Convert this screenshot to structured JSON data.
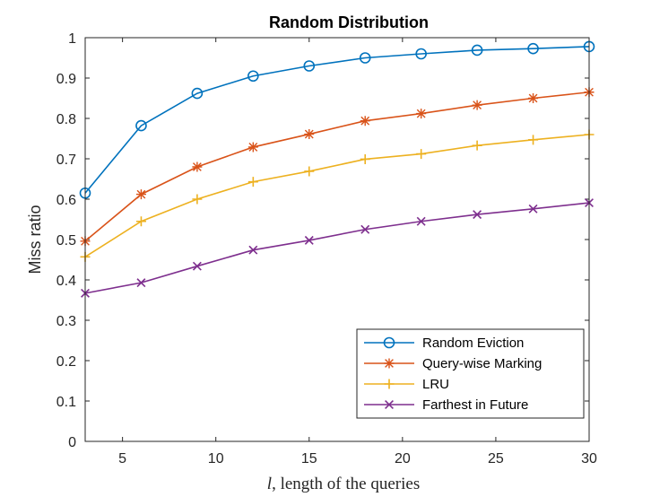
{
  "chart_data": {
    "type": "line",
    "title": "Random Distribution",
    "xlabel_var": "l",
    "xlabel_rest": ", length of the queries",
    "ylabel": "Miss ratio",
    "xlim": [
      3,
      30
    ],
    "ylim": [
      0,
      1
    ],
    "xticks": [
      5,
      10,
      15,
      20,
      25,
      30
    ],
    "yticks": [
      0,
      0.1,
      0.2,
      0.3,
      0.4,
      0.5,
      0.6,
      0.7,
      0.8,
      0.9,
      1
    ],
    "ytick_labels": [
      "0",
      "0.1",
      "0.2",
      "0.3",
      "0.4",
      "0.5",
      "0.6",
      "0.7",
      "0.8",
      "0.9",
      "1"
    ],
    "x": [
      3,
      6,
      9,
      12,
      15,
      18,
      21,
      24,
      27,
      30
    ],
    "legend_position": "bottom-right",
    "series": [
      {
        "name": "Random Eviction",
        "color": "#0072BD",
        "marker": "circle",
        "values": [
          0.615,
          0.782,
          0.862,
          0.905,
          0.93,
          0.95,
          0.96,
          0.969,
          0.973,
          0.978
        ]
      },
      {
        "name": "Query-wise Marking",
        "color": "#D95319",
        "marker": "asterisk",
        "values": [
          0.496,
          0.612,
          0.68,
          0.729,
          0.761,
          0.794,
          0.812,
          0.833,
          0.85,
          0.865
        ]
      },
      {
        "name": "LRU",
        "color": "#EDB120",
        "marker": "plus",
        "values": [
          0.457,
          0.545,
          0.6,
          0.643,
          0.669,
          0.699,
          0.712,
          0.733,
          0.747,
          0.76
        ]
      },
      {
        "name": "Farthest in Future",
        "color": "#7E2F8E",
        "marker": "cross",
        "values": [
          0.367,
          0.393,
          0.434,
          0.474,
          0.498,
          0.525,
          0.545,
          0.562,
          0.576,
          0.591
        ]
      }
    ]
  }
}
